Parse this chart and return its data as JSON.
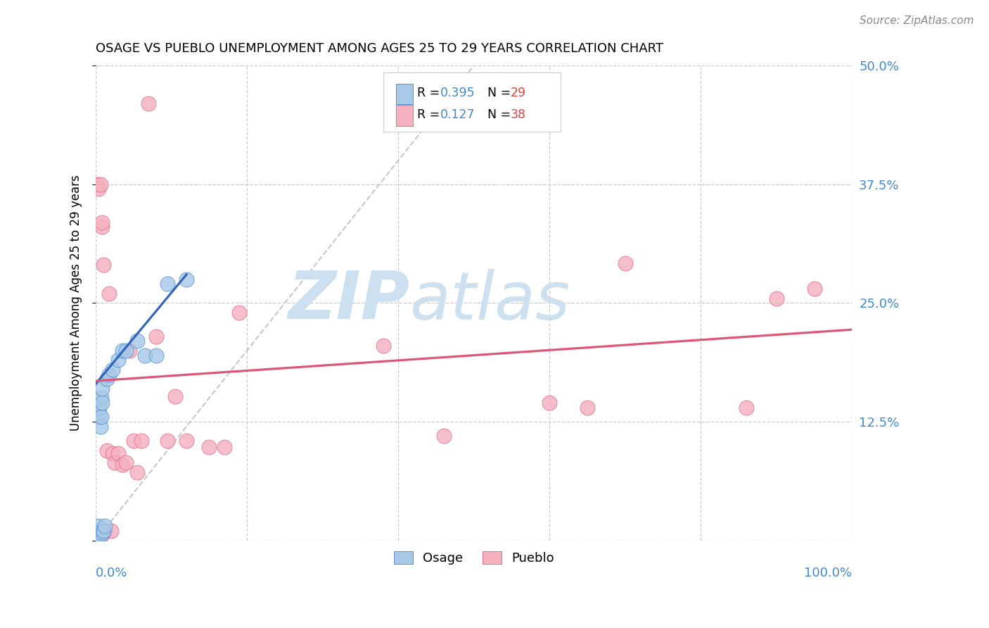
{
  "title": "OSAGE VS PUEBLO UNEMPLOYMENT AMONG AGES 25 TO 29 YEARS CORRELATION CHART",
  "source": "Source: ZipAtlas.com",
  "ylabel": "Unemployment Among Ages 25 to 29 years",
  "xlim": [
    0,
    1.0
  ],
  "ylim": [
    0,
    0.5
  ],
  "xticks": [
    0.0,
    0.2,
    0.4,
    0.6,
    0.8,
    1.0
  ],
  "yticks": [
    0.0,
    0.125,
    0.25,
    0.375,
    0.5
  ],
  "yticklabels_right": [
    "",
    "12.5%",
    "25.0%",
    "37.5%",
    "50.0%"
  ],
  "osage_color": "#a8c8e8",
  "pueblo_color": "#f5b0c0",
  "osage_edge_color": "#4488cc",
  "pueblo_edge_color": "#e06080",
  "osage_line_color": "#3366bb",
  "pueblo_line_color": "#dd5577",
  "diagonal_color": "#c0c8d0",
  "watermark_zip": "ZIP",
  "watermark_atlas": "atlas",
  "watermark_color": "#cce0f0",
  "r_n_color": "#4488cc",
  "n_value_color": "#dd4444",
  "osage_r": "0.395",
  "osage_n": "29",
  "pueblo_r": "0.127",
  "pueblo_n": "38",
  "osage_x": [
    0.002,
    0.002,
    0.002,
    0.003,
    0.003,
    0.004,
    0.004,
    0.005,
    0.005,
    0.005,
    0.006,
    0.007,
    0.007,
    0.008,
    0.008,
    0.009,
    0.01,
    0.012,
    0.015,
    0.018,
    0.022,
    0.03,
    0.035,
    0.04,
    0.055,
    0.065,
    0.08,
    0.095,
    0.12
  ],
  "osage_y": [
    0.005,
    0.007,
    0.01,
    0.01,
    0.015,
    0.005,
    0.008,
    0.005,
    0.13,
    0.14,
    0.12,
    0.13,
    0.15,
    0.145,
    0.16,
    0.008,
    0.01,
    0.015,
    0.17,
    0.175,
    0.18,
    0.19,
    0.2,
    0.2,
    0.21,
    0.195,
    0.195,
    0.27,
    0.275
  ],
  "pueblo_x": [
    0.002,
    0.003,
    0.004,
    0.005,
    0.006,
    0.007,
    0.008,
    0.008,
    0.01,
    0.012,
    0.015,
    0.018,
    0.02,
    0.022,
    0.025,
    0.03,
    0.035,
    0.04,
    0.045,
    0.05,
    0.055,
    0.06,
    0.07,
    0.08,
    0.095,
    0.105,
    0.12,
    0.15,
    0.17,
    0.19,
    0.38,
    0.46,
    0.6,
    0.65,
    0.7,
    0.86,
    0.9,
    0.95
  ],
  "pueblo_y": [
    0.005,
    0.375,
    0.37,
    0.01,
    0.375,
    0.005,
    0.33,
    0.335,
    0.29,
    0.01,
    0.095,
    0.26,
    0.01,
    0.092,
    0.082,
    0.092,
    0.08,
    0.082,
    0.2,
    0.105,
    0.072,
    0.105,
    0.46,
    0.215,
    0.105,
    0.152,
    0.105,
    0.098,
    0.098,
    0.24,
    0.205,
    0.11,
    0.145,
    0.14,
    0.292,
    0.14,
    0.255,
    0.265
  ],
  "osage_line_x": [
    0.0,
    0.12
  ],
  "osage_line_y": [
    0.165,
    0.28
  ],
  "pueblo_line_x": [
    0.0,
    1.0
  ],
  "pueblo_line_y": [
    0.168,
    0.222
  ]
}
